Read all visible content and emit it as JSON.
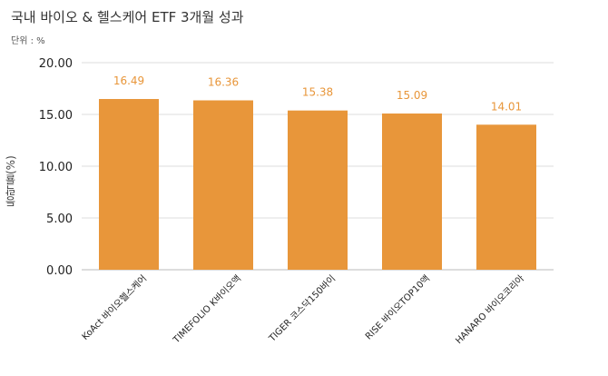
{
  "chart_data": {
    "type": "bar",
    "title": "국내 바이오 & 헬스케어 ETF 3개월 성과",
    "unit_label": "단위 : %",
    "ylabel": "등락률(%)",
    "xlabel": "",
    "categories": [
      "KoAct 바이오헬스케어",
      "TIMEFOLIO K바이오액",
      "TIGER 코스닥150바이",
      "RISE 바이오TOP10액",
      "HANARO 바이오코리아"
    ],
    "values": [
      16.49,
      16.36,
      15.38,
      15.09,
      14.01
    ],
    "value_labels": [
      "16.49",
      "16.36",
      "15.38",
      "15.09",
      "14.01"
    ],
    "ylim": [
      0,
      20
    ],
    "yticks": [
      0,
      5,
      10,
      15,
      20
    ],
    "ytick_labels": [
      "0.00",
      "5.00",
      "10.00",
      "15.00",
      "20.00"
    ],
    "grid": true,
    "bar_color": "#e8963a",
    "label_color": "#e8963a"
  }
}
